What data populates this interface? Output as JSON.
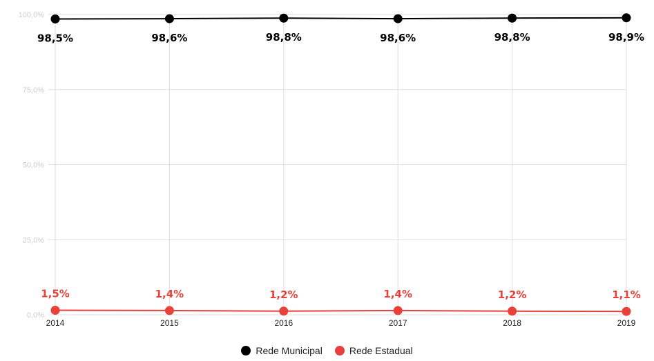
{
  "chart_data": {
    "type": "line",
    "categories": [
      "2014",
      "2015",
      "2016",
      "2017",
      "2018",
      "2019"
    ],
    "series": [
      {
        "name": "Rede Municipal",
        "color": "#000000",
        "values": [
          98.5,
          98.6,
          98.8,
          98.6,
          98.8,
          98.9
        ],
        "labels": [
          "98,5%",
          "98,6%",
          "98,8%",
          "98,6%",
          "98,8%",
          "98,9%"
        ]
      },
      {
        "name": "Rede Estadual",
        "color": "#e8403a",
        "values": [
          1.5,
          1.4,
          1.2,
          1.4,
          1.2,
          1.1
        ],
        "labels": [
          "1,5%",
          "1,4%",
          "1,2%",
          "1,4%",
          "1,2%",
          "1,1%"
        ]
      }
    ],
    "ylim": [
      0,
      100
    ],
    "yticks": [
      0,
      25,
      50,
      75,
      100
    ],
    "ytick_labels": [
      "0,0%",
      "25,0%",
      "50,0%",
      "75,0%",
      "100,0%"
    ],
    "grid": true,
    "legend_position": "bottom-center"
  }
}
